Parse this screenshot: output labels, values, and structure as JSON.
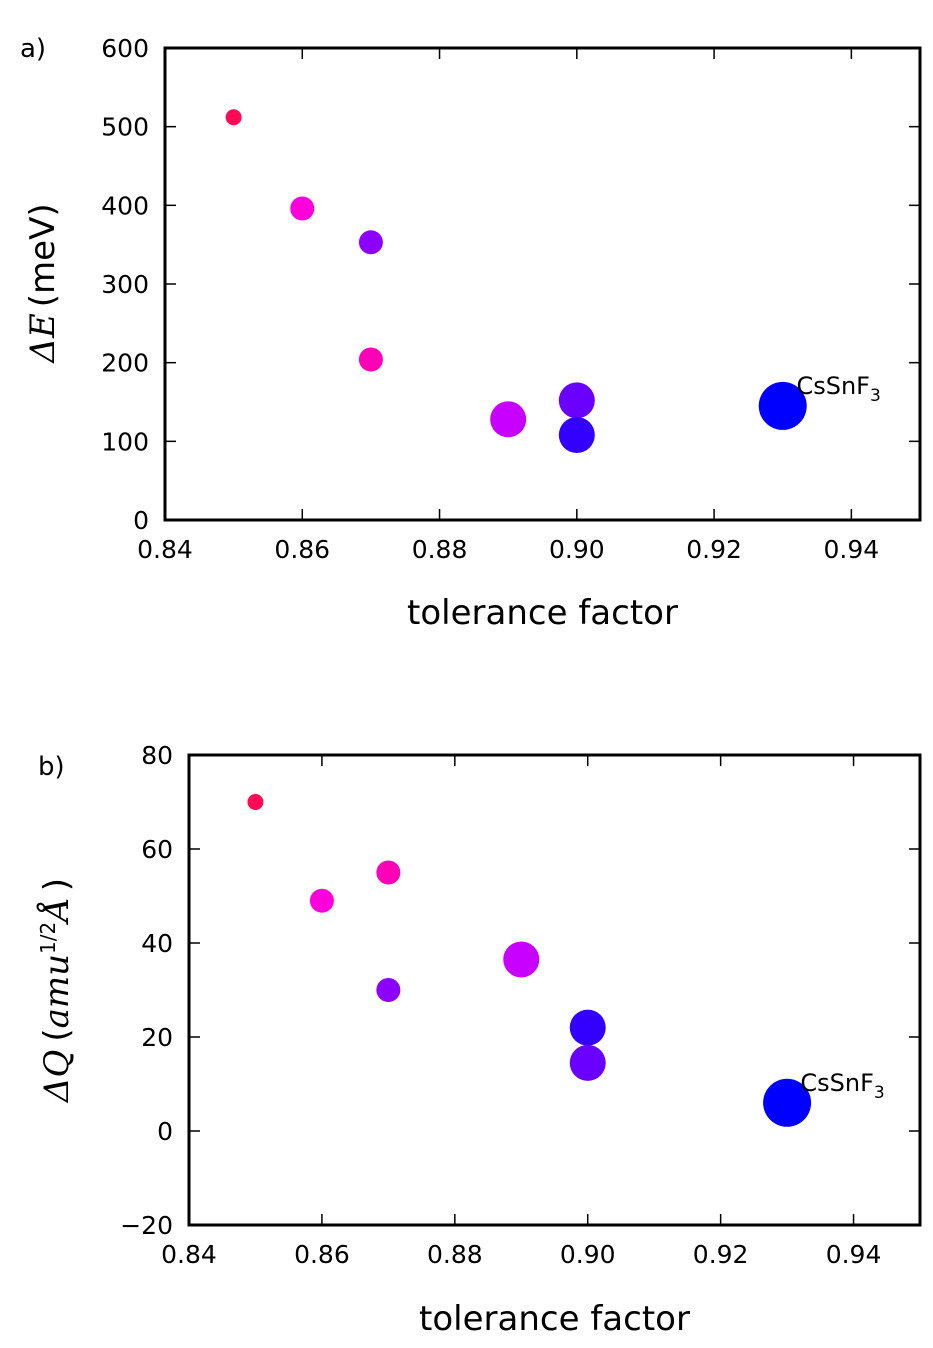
{
  "chart_data": [
    {
      "type": "scatter",
      "panel_label": "a)",
      "xlabel": "tolerance factor",
      "ylabel_symbol": "ΔE",
      "ylabel_unit": "(meV)",
      "xlim": [
        0.84,
        0.95
      ],
      "ylim": [
        0,
        600
      ],
      "xticks": [
        "0.84",
        "0.86",
        "0.88",
        "0.90",
        "0.92",
        "0.94"
      ],
      "yticks": [
        "0",
        "100",
        "200",
        "300",
        "400",
        "500",
        "600"
      ],
      "points": [
        {
          "x": 0.85,
          "y": 512,
          "size": 1,
          "color": "#ff0a55"
        },
        {
          "x": 0.86,
          "y": 396,
          "size": 2,
          "color": "#ff00dd"
        },
        {
          "x": 0.87,
          "y": 353,
          "size": 2,
          "color": "#8c00ff"
        },
        {
          "x": 0.87,
          "y": 204,
          "size": 2,
          "color": "#ff00b8"
        },
        {
          "x": 0.89,
          "y": 128,
          "size": 3,
          "color": "#c800ff"
        },
        {
          "x": 0.9,
          "y": 152,
          "size": 3,
          "color": "#6a00ff"
        },
        {
          "x": 0.9,
          "y": 108,
          "size": 3,
          "color": "#3300ff"
        },
        {
          "x": 0.93,
          "y": 145,
          "size": 4,
          "color": "#0000ff"
        }
      ],
      "annotation": {
        "text": "CsSnF",
        "subscript": "3",
        "x": 0.932,
        "y": 160
      }
    },
    {
      "type": "scatter",
      "panel_label": "b)",
      "xlabel": "tolerance factor",
      "ylabel_symbol": "ΔQ",
      "ylabel_unit_open": "(",
      "ylabel_unit_main": "amu",
      "ylabel_unit_sup": "1/2",
      "ylabel_unit_angstrom": "Å",
      "ylabel_unit_close": ")",
      "xlim": [
        0.84,
        0.95
      ],
      "ylim": [
        -20,
        80
      ],
      "xticks": [
        "0.84",
        "0.86",
        "0.88",
        "0.90",
        "0.92",
        "0.94"
      ],
      "yticks": [
        "−20",
        "0",
        "20",
        "40",
        "60",
        "80"
      ],
      "points": [
        {
          "x": 0.85,
          "y": 70,
          "size": 1,
          "color": "#ff0a55"
        },
        {
          "x": 0.86,
          "y": 49,
          "size": 2,
          "color": "#ff00dd"
        },
        {
          "x": 0.87,
          "y": 55,
          "size": 2,
          "color": "#ff00b8"
        },
        {
          "x": 0.87,
          "y": 30,
          "size": 2,
          "color": "#8c00ff"
        },
        {
          "x": 0.89,
          "y": 36.5,
          "size": 3,
          "color": "#c800ff"
        },
        {
          "x": 0.9,
          "y": 22,
          "size": 3,
          "color": "#3300ff"
        },
        {
          "x": 0.9,
          "y": 14.5,
          "size": 3,
          "color": "#6a00ff"
        },
        {
          "x": 0.93,
          "y": 6,
          "size": 4,
          "color": "#0000ff"
        }
      ],
      "annotation": {
        "text": "CsSnF",
        "subscript": "3",
        "x": 0.932,
        "y": 8.5
      }
    }
  ]
}
